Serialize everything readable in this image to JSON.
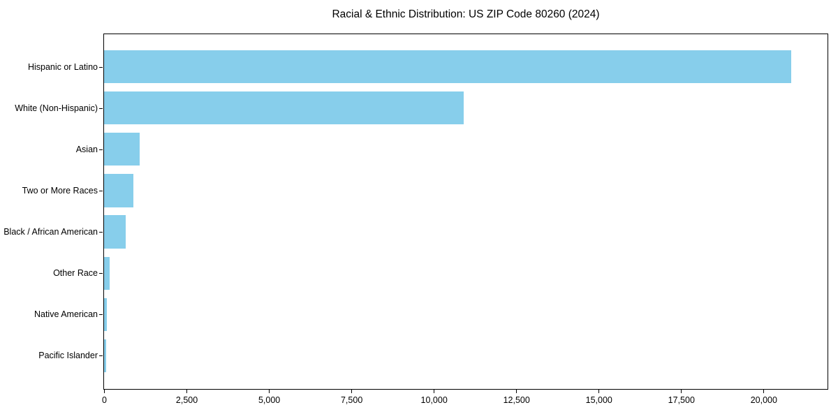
{
  "chart_data": {
    "type": "bar",
    "orientation": "horizontal",
    "title": "Racial & Ethnic Distribution: US ZIP Code 80260 (2024)",
    "categories": [
      "Hispanic or Latino",
      "White (Non-Hispanic)",
      "Asian",
      "Two or More Races",
      "Black / African American",
      "Other Race",
      "Native American",
      "Pacific Islander"
    ],
    "values": [
      20840,
      10900,
      1075,
      880,
      665,
      180,
      90,
      65
    ],
    "xlabel": "",
    "ylabel": "",
    "xlim": [
      0,
      21920
    ],
    "xticks": {
      "values": [
        0,
        2500,
        5000,
        7500,
        10000,
        12500,
        15000,
        17500,
        20000
      ],
      "labels": [
        "0",
        "2,500",
        "5,000",
        "7,500",
        "10,000",
        "12,500",
        "15,000",
        "17,500",
        "20,000"
      ]
    },
    "bar_color": "#87CEEB",
    "text_color": "#000000",
    "background_color": "#ffffff",
    "grid": false,
    "legend": "none"
  }
}
